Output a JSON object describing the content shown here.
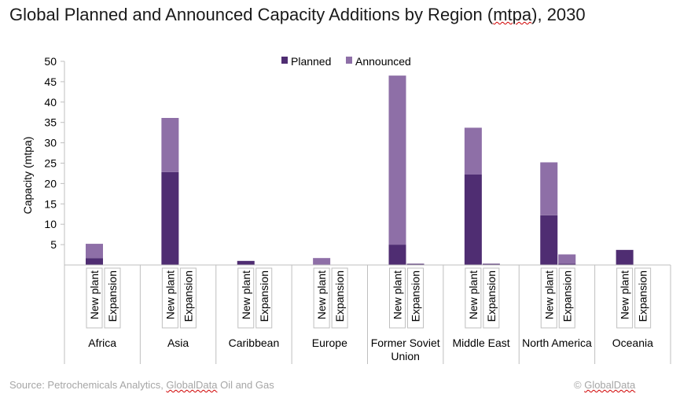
{
  "title": {
    "pre": "Global Planned and Announced Capacity Additions by Region (",
    "unit": "mtpa",
    "post": "), 2030"
  },
  "source": {
    "pre": "Source: Petrochemicals Analytics, ",
    "brand": "GlobalData",
    "post": " Oil and Gas"
  },
  "copyright": {
    "pre": "© ",
    "brand": "GlobalData"
  },
  "colors": {
    "planned": "#4f2d72",
    "announced": "#8e6fa7",
    "axis": "#bfbfbf"
  },
  "chart_data": {
    "type": "bar",
    "stacked": true,
    "ylabel": "Capacity (mtpa)",
    "ylim": [
      0,
      50
    ],
    "yticks": [
      5,
      10,
      15,
      20,
      25,
      30,
      35,
      40,
      45,
      50
    ],
    "grid": false,
    "legend_position": "top-center",
    "regions": [
      "Africa",
      "Asia",
      "Caribbean",
      "Europe",
      "Former Soviet Union",
      "Middle East",
      "North America",
      "Oceania"
    ],
    "region_label_lines": [
      [
        "Africa"
      ],
      [
        "Asia"
      ],
      [
        "Caribbean"
      ],
      [
        "Europe"
      ],
      [
        "Former Soviet",
        "Union"
      ],
      [
        "Middle East"
      ],
      [
        "North America"
      ],
      [
        "Oceania"
      ]
    ],
    "subcategories": [
      "New plant",
      "Expansion"
    ],
    "series": [
      {
        "name": "Planned",
        "values": [
          [
            1.7,
            0
          ],
          [
            22.8,
            0
          ],
          [
            1.0,
            0
          ],
          [
            0,
            0
          ],
          [
            5.0,
            0.3
          ],
          [
            22.2,
            0.3
          ],
          [
            12.2,
            0.3
          ],
          [
            3.7,
            0
          ]
        ]
      },
      {
        "name": "Announced",
        "values": [
          [
            3.5,
            0
          ],
          [
            13.3,
            0
          ],
          [
            0,
            0
          ],
          [
            1.7,
            0
          ],
          [
            41.5,
            0
          ],
          [
            11.5,
            0
          ],
          [
            13.0,
            2.3
          ],
          [
            0,
            0
          ]
        ]
      }
    ]
  }
}
